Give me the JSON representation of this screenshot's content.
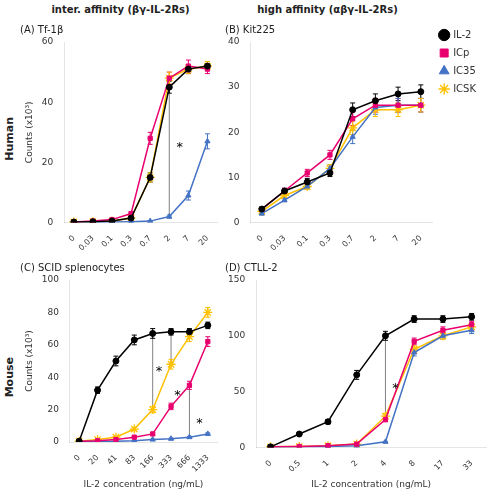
{
  "col_titles": [
    "inter. affinity (βγ-IL-2Rs)",
    "high affinity (αβγ-IL-2Rs)"
  ],
  "row_titles": [
    "Human",
    "Mouse"
  ],
  "chart_data": [
    {
      "type": "line",
      "title": "(A) Tf-1β",
      "ylabel": "Counts (x10³)",
      "categories": [
        "0",
        "0.03",
        "0.1",
        "0.3",
        "0.7",
        "2",
        "7",
        "20"
      ],
      "ylim": [
        0,
        60
      ],
      "yticks": [
        0,
        20,
        40,
        60
      ],
      "grid": false,
      "series": [
        {
          "name": "IL-2",
          "color": "#000000",
          "marker": "circle",
          "values": [
            0.2,
            0.3,
            0.5,
            1.5,
            15,
            45,
            51,
            52
          ],
          "errors": [
            0.1,
            0.1,
            0.2,
            0.3,
            1.5,
            2.0,
            1.5,
            1.5
          ]
        },
        {
          "name": "ICp",
          "color": "#e8006f",
          "marker": "square",
          "values": [
            0.2,
            0.5,
            1.0,
            3.0,
            28,
            48,
            52,
            51
          ],
          "errors": [
            0.1,
            0.2,
            0.3,
            0.5,
            2.0,
            2.0,
            2.0,
            1.5
          ]
        },
        {
          "name": "IC35",
          "color": "#4472c4",
          "marker": "triangle",
          "values": [
            0.1,
            0.1,
            0.2,
            0.3,
            0.5,
            2.0,
            9.0,
            27
          ],
          "errors": [
            0.05,
            0.05,
            0.1,
            0.1,
            0.2,
            0.5,
            1.5,
            2.5
          ]
        },
        {
          "name": "ICSK",
          "color": "#ffc000",
          "marker": "star",
          "values": [
            0.2,
            0.3,
            0.5,
            1.5,
            15,
            48,
            51,
            52
          ],
          "errors": [
            0.1,
            0.1,
            0.2,
            0.3,
            1.5,
            2.0,
            1.5,
            1.5
          ]
        }
      ],
      "annotations": [
        {
          "text": "*",
          "x": 5.55,
          "y": 24
        }
      ],
      "lines": [
        {
          "x1": 5.0,
          "x2": 5.0,
          "y1": 45.0,
          "y2": 2.0
        }
      ]
    },
    {
      "type": "line",
      "title": "(B) Kit225",
      "categories": [
        "0",
        "0.03",
        "0.1",
        "0.3",
        "0.7",
        "2",
        "7",
        "20"
      ],
      "ylim": [
        0,
        40
      ],
      "yticks": [
        0,
        10,
        20,
        30,
        40
      ],
      "grid": false,
      "legend": "right",
      "series": [
        {
          "name": "IL-2",
          "color": "#000000",
          "marker": "circle",
          "values": [
            3.0,
            7.0,
            9.0,
            11.0,
            25.0,
            27.0,
            28.5,
            29.0
          ],
          "errors": [
            0.4,
            0.6,
            0.8,
            0.8,
            1.5,
            1.5,
            1.5,
            1.5
          ]
        },
        {
          "name": "ICp",
          "color": "#e8006f",
          "marker": "square",
          "values": [
            3.0,
            7.0,
            11.0,
            15.0,
            23.0,
            26.0,
            26.0,
            26.0
          ],
          "errors": [
            0.4,
            0.6,
            0.8,
            1.0,
            1.5,
            1.5,
            1.5,
            1.5
          ]
        },
        {
          "name": "IC35",
          "color": "#4472c4",
          "marker": "triangle",
          "values": [
            2.0,
            5.0,
            8.0,
            12.0,
            19.0,
            25.5,
            26.0,
            26.0
          ],
          "errors": [
            0.3,
            0.4,
            0.6,
            0.8,
            1.5,
            1.5,
            1.5,
            1.5
          ]
        },
        {
          "name": "ICSK",
          "color": "#ffc000",
          "marker": "star",
          "values": [
            2.5,
            6.0,
            8.0,
            12.0,
            21.0,
            25.0,
            25.0,
            26.0
          ],
          "errors": [
            0.3,
            0.4,
            0.6,
            0.8,
            1.5,
            1.5,
            1.5,
            1.5
          ]
        }
      ]
    },
    {
      "type": "line",
      "title": "(C) SCID splenocytes",
      "ylabel": "Counts (x10³)",
      "xlabel": "IL-2 concentration (ng/mL)",
      "categories": [
        "0",
        "20",
        "41",
        "83",
        "166",
        "333",
        "666",
        "1333"
      ],
      "ylim": [
        0,
        100
      ],
      "yticks": [
        0,
        20,
        40,
        60,
        80,
        100
      ],
      "grid": false,
      "series": [
        {
          "name": "IL-2",
          "color": "#000000",
          "marker": "circle",
          "values": [
            0.5,
            32,
            50,
            63,
            67,
            68,
            68,
            72
          ],
          "errors": [
            0.2,
            2.0,
            3.0,
            3.0,
            3.0,
            2.0,
            2.0,
            2.0
          ]
        },
        {
          "name": "ICp",
          "color": "#e8006f",
          "marker": "square",
          "values": [
            0.5,
            0.8,
            1.5,
            3.0,
            5.0,
            22,
            35,
            62
          ],
          "errors": [
            0.2,
            0.2,
            0.3,
            0.5,
            0.8,
            2.0,
            2.5,
            3.0
          ]
        },
        {
          "name": "IC35",
          "color": "#4472c4",
          "marker": "triangle",
          "values": [
            0.3,
            0.3,
            0.5,
            0.8,
            1.5,
            2.0,
            3.0,
            5.0
          ],
          "errors": [
            0.1,
            0.1,
            0.2,
            0.2,
            0.3,
            0.4,
            0.5,
            0.6
          ]
        },
        {
          "name": "ICSK",
          "color": "#ffc000",
          "marker": "star",
          "values": [
            0.5,
            1.5,
            3.0,
            8.0,
            20,
            48,
            65,
            80
          ],
          "errors": [
            0.2,
            0.3,
            0.5,
            1.0,
            2.0,
            3.0,
            3.0,
            3.0
          ]
        }
      ],
      "annotations": [
        {
          "text": "*",
          "x": 4.35,
          "y": 42
        },
        {
          "text": "*",
          "x": 5.35,
          "y": 27
        },
        {
          "text": "*",
          "x": 6.55,
          "y": 10
        }
      ],
      "lines": [
        {
          "x1": 4.0,
          "x2": 4.0,
          "y1": 67,
          "y2": 20
        },
        {
          "x1": 5.0,
          "x2": 5.0,
          "y1": 68,
          "y2": 48
        },
        {
          "x1": 6.0,
          "x2": 6.0,
          "y1": 35,
          "y2": 3
        }
      ]
    },
    {
      "type": "line",
      "title": "(D) CTLL-2",
      "xlabel": "IL-2 concentration (ng/mL)",
      "categories": [
        "0",
        "0.5",
        "1",
        "2",
        "4",
        "8",
        "17",
        "33"
      ],
      "ylim": [
        0,
        150
      ],
      "yticks": [
        0,
        50,
        100,
        150
      ],
      "grid": false,
      "series": [
        {
          "name": "IL-2",
          "color": "#000000",
          "marker": "circle",
          "values": [
            0.5,
            12,
            23,
            65,
            100,
            115,
            115,
            117
          ],
          "errors": [
            0.2,
            1.0,
            2.0,
            4.0,
            4.0,
            3.0,
            3.0,
            3.0
          ]
        },
        {
          "name": "ICp",
          "color": "#e8006f",
          "marker": "square",
          "values": [
            0.5,
            0.8,
            1.5,
            3.0,
            25,
            95,
            105,
            110
          ],
          "errors": [
            0.2,
            0.2,
            0.3,
            0.5,
            2.0,
            3.0,
            3.0,
            3.0
          ]
        },
        {
          "name": "IC35",
          "color": "#4472c4",
          "marker": "triangle",
          "values": [
            0.3,
            0.5,
            0.8,
            1.5,
            5.0,
            85,
            100,
            105
          ],
          "errors": [
            0.1,
            0.1,
            0.2,
            0.3,
            0.5,
            3.0,
            3.0,
            3.0
          ]
        },
        {
          "name": "ICSK",
          "color": "#ffc000",
          "marker": "star",
          "values": [
            0.5,
            0.8,
            1.5,
            3.0,
            28,
            88,
            100,
            108
          ],
          "errors": [
            0.2,
            0.2,
            0.3,
            0.5,
            2.5,
            3.0,
            3.0,
            3.0
          ]
        }
      ],
      "annotations": [
        {
          "text": "*",
          "x": 4.35,
          "y": 50
        }
      ],
      "lines": [
        {
          "x1": 4.0,
          "x2": 4.0,
          "y1": 100,
          "y2": 28
        }
      ]
    }
  ]
}
